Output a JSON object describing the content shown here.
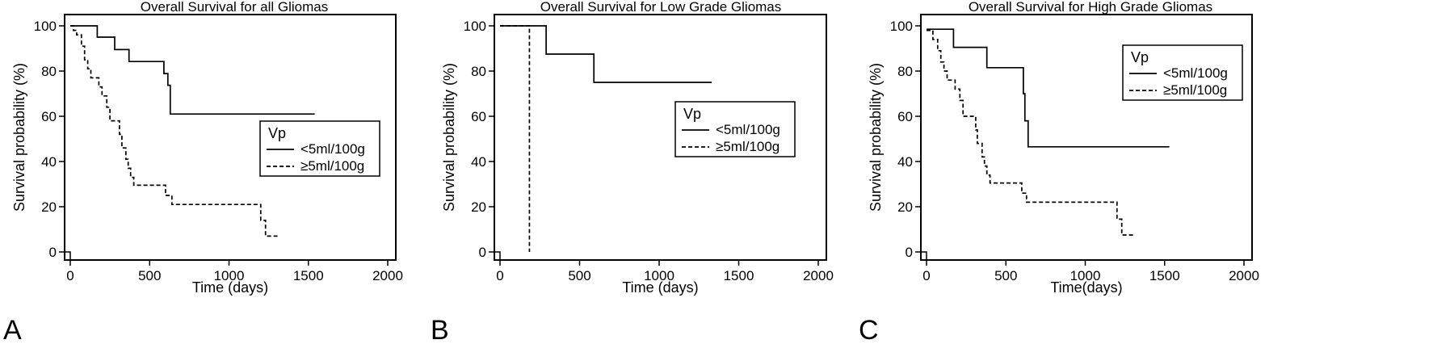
{
  "chart_data": [
    {
      "type": "line",
      "step": true,
      "panel_label": "A",
      "title": "Overall Survival for all Gliomas",
      "xlabel": "Time (days)",
      "ylabel": "Survival probability (%)",
      "xlim": [
        0,
        2000
      ],
      "ylim": [
        0,
        100
      ],
      "x_ticks": [
        0,
        500,
        1000,
        1500,
        2000
      ],
      "y_ticks": [
        0,
        20,
        40,
        60,
        80,
        100
      ],
      "legend": {
        "title": "Vp",
        "position": "center-right"
      },
      "series": [
        {
          "name": "<5ml/100g",
          "line_style": "solid",
          "points": [
            [
              0,
              100
            ],
            [
              170,
              100
            ],
            [
              170,
              95
            ],
            [
              280,
              95
            ],
            [
              280,
              89.5
            ],
            [
              370,
              89.5
            ],
            [
              370,
              84.2
            ],
            [
              590,
              84.2
            ],
            [
              590,
              78.9
            ],
            [
              615,
              78.9
            ],
            [
              615,
              73.7
            ],
            [
              630,
              73.7
            ],
            [
              630,
              61
            ],
            [
              1540,
              61
            ]
          ]
        },
        {
          "name": "≥5ml/100g",
          "line_style": "dashed",
          "points": [
            [
              0,
              100
            ],
            [
              20,
              100
            ],
            [
              20,
              98
            ],
            [
              40,
              98
            ],
            [
              40,
              96
            ],
            [
              70,
              96
            ],
            [
              70,
              91
            ],
            [
              90,
              91
            ],
            [
              90,
              85
            ],
            [
              110,
              85
            ],
            [
              110,
              81
            ],
            [
              130,
              81
            ],
            [
              130,
              77
            ],
            [
              180,
              77
            ],
            [
              180,
              73
            ],
            [
              200,
              73
            ],
            [
              200,
              69
            ],
            [
              230,
              69
            ],
            [
              230,
              64
            ],
            [
              250,
              64
            ],
            [
              250,
              58
            ],
            [
              310,
              58
            ],
            [
              310,
              52
            ],
            [
              325,
              52
            ],
            [
              325,
              46
            ],
            [
              350,
              46
            ],
            [
              350,
              41
            ],
            [
              365,
              41
            ],
            [
              365,
              37
            ],
            [
              380,
              37
            ],
            [
              380,
              33
            ],
            [
              400,
              33
            ],
            [
              400,
              29.5
            ],
            [
              600,
              29.5
            ],
            [
              600,
              25
            ],
            [
              640,
              25
            ],
            [
              640,
              21
            ],
            [
              1200,
              21
            ],
            [
              1200,
              14
            ],
            [
              1230,
              14
            ],
            [
              1230,
              7
            ],
            [
              1310,
              7
            ]
          ]
        }
      ]
    },
    {
      "type": "line",
      "step": true,
      "panel_label": "B",
      "title": "Overall Survival for Low Grade Gliomas",
      "xlabel": "Time (days)",
      "ylabel": "Survival probability (%)",
      "xlim": [
        0,
        2000
      ],
      "ylim": [
        0,
        100
      ],
      "x_ticks": [
        0,
        500,
        1000,
        1500,
        2000
      ],
      "y_ticks": [
        0,
        20,
        40,
        60,
        80,
        100
      ],
      "legend": {
        "title": "Vp",
        "position": "center-right"
      },
      "series": [
        {
          "name": "<5ml/100g",
          "line_style": "solid",
          "points": [
            [
              0,
              100
            ],
            [
              290,
              100
            ],
            [
              290,
              87.5
            ],
            [
              590,
              87.5
            ],
            [
              590,
              75
            ],
            [
              1330,
              75
            ]
          ]
        },
        {
          "name": "≥5ml/100g",
          "line_style": "dashed",
          "points": [
            [
              0,
              100
            ],
            [
              185,
              100
            ],
            [
              185,
              0
            ]
          ]
        }
      ]
    },
    {
      "type": "line",
      "step": true,
      "panel_label": "C",
      "title": "Overall Survival for High Grade Gliomas",
      "xlabel": "Time(days)",
      "ylabel": "Survival probability (%)",
      "xlim": [
        0,
        2000
      ],
      "ylim": [
        0,
        100
      ],
      "x_ticks": [
        0,
        500,
        1000,
        1500,
        2000
      ],
      "y_ticks": [
        0,
        20,
        40,
        60,
        80,
        100
      ],
      "legend": {
        "title": "Vp",
        "position": "top-right"
      },
      "series": [
        {
          "name": "<5ml/100g",
          "line_style": "solid",
          "points": [
            [
              0,
              98.5
            ],
            [
              170,
              98.5
            ],
            [
              170,
              90.5
            ],
            [
              380,
              90.5
            ],
            [
              380,
              81.5
            ],
            [
              610,
              81.5
            ],
            [
              610,
              70
            ],
            [
              620,
              70
            ],
            [
              620,
              58
            ],
            [
              640,
              58
            ],
            [
              640,
              46.5
            ],
            [
              1530,
              46.5
            ]
          ]
        },
        {
          "name": "≥5ml/100g",
          "line_style": "dashed",
          "points": [
            [
              0,
              98
            ],
            [
              40,
              98
            ],
            [
              40,
              94
            ],
            [
              70,
              94
            ],
            [
              70,
              89
            ],
            [
              90,
              89
            ],
            [
              90,
              84
            ],
            [
              110,
              84
            ],
            [
              110,
              80
            ],
            [
              130,
              80
            ],
            [
              130,
              76
            ],
            [
              180,
              76
            ],
            [
              180,
              72
            ],
            [
              210,
              72
            ],
            [
              210,
              67
            ],
            [
              230,
              67
            ],
            [
              230,
              60
            ],
            [
              310,
              60
            ],
            [
              310,
              54
            ],
            [
              320,
              54
            ],
            [
              320,
              48
            ],
            [
              350,
              48
            ],
            [
              350,
              42
            ],
            [
              365,
              42
            ],
            [
              365,
              38
            ],
            [
              380,
              38
            ],
            [
              380,
              34
            ],
            [
              400,
              34
            ],
            [
              400,
              30.5
            ],
            [
              600,
              30.5
            ],
            [
              600,
              26
            ],
            [
              630,
              26
            ],
            [
              630,
              22
            ],
            [
              1200,
              22
            ],
            [
              1200,
              14.5
            ],
            [
              1230,
              14.5
            ],
            [
              1230,
              7.5
            ],
            [
              1310,
              7.5
            ]
          ]
        }
      ]
    }
  ]
}
